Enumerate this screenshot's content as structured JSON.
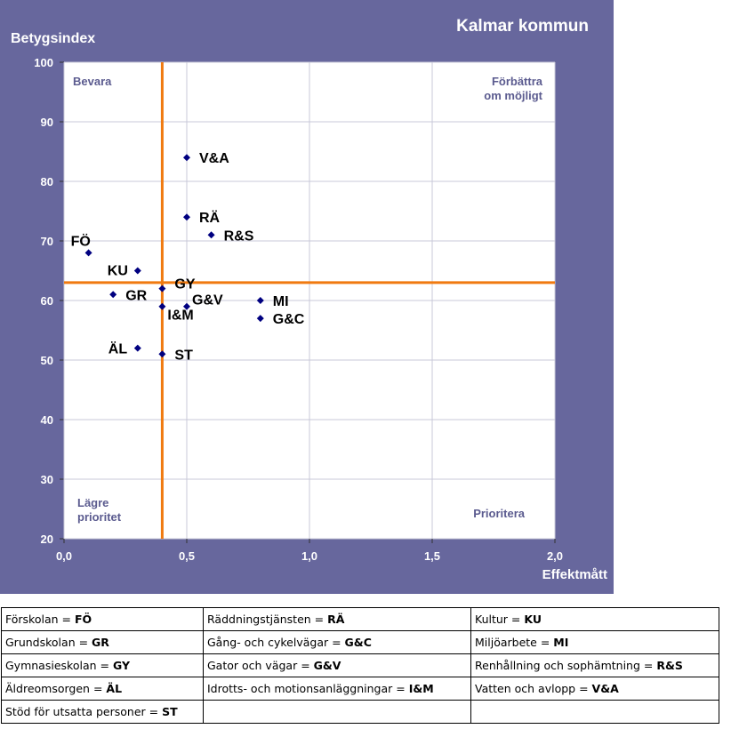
{
  "chart_data": {
    "type": "scatter",
    "title": "Kalmar kommun",
    "xlabel": "Effektmått",
    "ylabel": "Betygsindex",
    "xlim": [
      0,
      2
    ],
    "ylim": [
      20,
      100
    ],
    "xticks": [
      "0,0",
      "0,5",
      "1,0",
      "1,5",
      "2,0"
    ],
    "yticks": [
      "20",
      "30",
      "40",
      "50",
      "60",
      "70",
      "80",
      "90",
      "100"
    ],
    "grid": true,
    "reference_lines": {
      "x": 0.4,
      "y": 63
    },
    "quadrants": {
      "top_left": "Bevara",
      "top_right": [
        "Förbättra",
        "om möjligt"
      ],
      "bottom_left": [
        "Lägre",
        "prioritet"
      ],
      "bottom_right": "Prioritera"
    },
    "points": [
      {
        "label": "V&A",
        "x": 0.5,
        "y": 84
      },
      {
        "label": "RÄ",
        "x": 0.5,
        "y": 74
      },
      {
        "label": "R&S",
        "x": 0.6,
        "y": 71
      },
      {
        "label": "FÖ",
        "x": 0.1,
        "y": 68
      },
      {
        "label": "KU",
        "x": 0.3,
        "y": 65
      },
      {
        "label": "GY",
        "x": 0.4,
        "y": 62
      },
      {
        "label": "GR",
        "x": 0.2,
        "y": 61
      },
      {
        "label": "G&V",
        "x": 0.5,
        "y": 59
      },
      {
        "label": "I&M",
        "x": 0.4,
        "y": 59
      },
      {
        "label": "MI",
        "x": 0.8,
        "y": 60
      },
      {
        "label": "G&C",
        "x": 0.8,
        "y": 57
      },
      {
        "label": "ÄL",
        "x": 0.3,
        "y": 52
      },
      {
        "label": "ST",
        "x": 0.4,
        "y": 51
      }
    ],
    "colors": {
      "background": "#67679d",
      "plot": "#ffffff",
      "grid": "#c8c8d8",
      "lines": "#f07a10",
      "marker": "#000080"
    }
  },
  "legend": {
    "rows": [
      [
        {
          "name": "Förskolan =",
          "code": "FÖ"
        },
        {
          "name": "Räddningstjänsten =",
          "code": "RÄ"
        },
        {
          "name": "Kultur =",
          "code": "KU"
        }
      ],
      [
        {
          "name": "Grundskolan =",
          "code": "GR"
        },
        {
          "name": "Gång- och cykelvägar =",
          "code": "G&C"
        },
        {
          "name": "Miljöarbete =",
          "code": "MI"
        }
      ],
      [
        {
          "name": "Gymnasieskolan =",
          "code": "GY"
        },
        {
          "name": "Gator och vägar =",
          "code": "G&V"
        },
        {
          "name": "Renhållning och sophämtning =",
          "code": "R&S"
        }
      ],
      [
        {
          "name": "Äldreomsorgen =",
          "code": "ÄL"
        },
        {
          "name": "Idrotts- och motionsanläggningar =",
          "code": "I&M"
        },
        {
          "name": "Vatten och avlopp =",
          "code": "V&A"
        }
      ],
      [
        {
          "name": "Stöd för utsatta personer =",
          "code": "ST"
        },
        {
          "name": "",
          "code": ""
        },
        {
          "name": "",
          "code": ""
        }
      ]
    ]
  }
}
